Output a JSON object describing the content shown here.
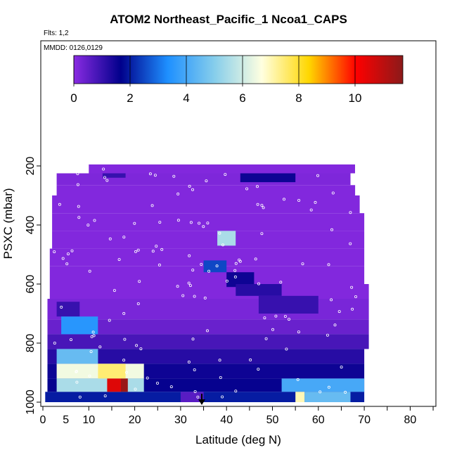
{
  "chart_data": {
    "type": "heatmap",
    "title": "ATOM2 Northeast_Pacific_1 Ncoa1_CAPS",
    "subtitle": "Flts: 1,2",
    "annotation": "MMDD: 0126,0129",
    "xlabel": "Latitude (deg N)",
    "ylabel": "PSXC (mbar)",
    "xlim": [
      0,
      85
    ],
    "ylim": [
      1000,
      0
    ],
    "x_ticks": [
      0,
      10,
      20,
      30,
      40,
      50,
      60,
      70,
      80
    ],
    "x_tick_labels": [
      "0",
      "5",
      "10",
      "20",
      "30",
      "40",
      "50",
      "60",
      "70",
      "80"
    ],
    "x_tick_label_values": [
      0,
      5,
      10,
      20,
      30,
      40,
      50,
      60,
      70,
      80
    ],
    "x_minor_ticks": [
      15,
      25,
      35,
      45,
      55,
      65,
      75,
      85
    ],
    "y_ticks": [
      200,
      400,
      600,
      800,
      1000
    ],
    "colorbar": {
      "min": 0,
      "max": 11.7,
      "ticks": [
        0,
        2,
        4,
        6,
        8,
        10
      ],
      "stops": [
        "#8a2be2",
        "#00008b",
        "#1e90ff",
        "#87ceeb",
        "#ffffe0",
        "#ffd700",
        "#ff0000",
        "#8b1a1a"
      ]
    },
    "cells": [
      {
        "lat": [
          10,
          68
        ],
        "p": [
          195,
          225
        ],
        "v": 0.1
      },
      {
        "lat": [
          3,
          67
        ],
        "p": [
          225,
          265
        ],
        "v": 0.15
      },
      {
        "lat": [
          3,
          68
        ],
        "p": [
          265,
          300
        ],
        "v": 0.1
      },
      {
        "lat": [
          2,
          69
        ],
        "p": [
          300,
          360
        ],
        "v": 0.1
      },
      {
        "lat": [
          2,
          70
        ],
        "p": [
          360,
          420
        ],
        "v": 0.1
      },
      {
        "lat": [
          2,
          70
        ],
        "p": [
          420,
          480
        ],
        "v": 0.1
      },
      {
        "lat": [
          1.5,
          70
        ],
        "p": [
          480,
          540
        ],
        "v": 0.1
      },
      {
        "lat": [
          1.5,
          70
        ],
        "p": [
          540,
          600
        ],
        "v": 0.1
      },
      {
        "lat": [
          1.5,
          71
        ],
        "p": [
          600,
          650
        ],
        "v": 0.1
      },
      {
        "lat": [
          1,
          71
        ],
        "p": [
          650,
          720
        ],
        "v": 0.2
      },
      {
        "lat": [
          1,
          71
        ],
        "p": [
          720,
          770
        ],
        "v": 0.4
      },
      {
        "lat": [
          1,
          71
        ],
        "p": [
          770,
          820
        ],
        "v": 0.8
      },
      {
        "lat": [
          1,
          70
        ],
        "p": [
          820,
          870
        ],
        "v": 1.2
      },
      {
        "lat": [
          1,
          70
        ],
        "p": [
          870,
          920
        ],
        "v": 1.5
      },
      {
        "lat": [
          1,
          70
        ],
        "p": [
          920,
          965
        ],
        "v": 1.6
      },
      {
        "lat": [
          0.5,
          70
        ],
        "p": [
          965,
          1000
        ],
        "v": 2.0
      },
      {
        "lat": [
          13,
          18
        ],
        "p": [
          225,
          240
        ],
        "v": 1.0
      },
      {
        "lat": [
          43,
          55
        ],
        "p": [
          225,
          255
        ],
        "v": 1.5
      },
      {
        "lat": [
          38,
          42
        ],
        "p": [
          420,
          470
        ],
        "v": 5.5
      },
      {
        "lat": [
          35,
          40
        ],
        "p": [
          520,
          560
        ],
        "v": 2.5
      },
      {
        "lat": [
          40,
          46
        ],
        "p": [
          560,
          610
        ],
        "v": 1.5
      },
      {
        "lat": [
          42,
          52
        ],
        "p": [
          600,
          640
        ],
        "v": 1.2
      },
      {
        "lat": [
          47,
          60
        ],
        "p": [
          640,
          700
        ],
        "v": 1.0
      },
      {
        "lat": [
          3,
          8
        ],
        "p": [
          660,
          710
        ],
        "v": 1.0
      },
      {
        "lat": [
          4,
          12
        ],
        "p": [
          710,
          770
        ],
        "v": 3.5
      },
      {
        "lat": [
          3,
          12
        ],
        "p": [
          820,
          870
        ],
        "v": 4.5
      },
      {
        "lat": [
          3,
          22
        ],
        "p": [
          870,
          920
        ],
        "v": 6.5
      },
      {
        "lat": [
          12,
          18
        ],
        "p": [
          870,
          920
        ],
        "v": 7.5
      },
      {
        "lat": [
          3,
          22
        ],
        "p": [
          920,
          965
        ],
        "v": 5.5
      },
      {
        "lat": [
          14,
          17
        ],
        "p": [
          920,
          965
        ],
        "v": 10.5
      },
      {
        "lat": [
          17,
          18.5
        ],
        "p": [
          920,
          965
        ],
        "v": 11.5
      },
      {
        "lat": [
          52,
          70
        ],
        "p": [
          920,
          965
        ],
        "v": 4.0
      },
      {
        "lat": [
          55,
          57
        ],
        "p": [
          965,
          1000
        ],
        "v": 7.0
      },
      {
        "lat": [
          57,
          67
        ],
        "p": [
          965,
          1000
        ],
        "v": 4.5
      },
      {
        "lat": [
          30,
          35
        ],
        "p": [
          965,
          1000
        ],
        "v": 0.6
      }
    ]
  }
}
